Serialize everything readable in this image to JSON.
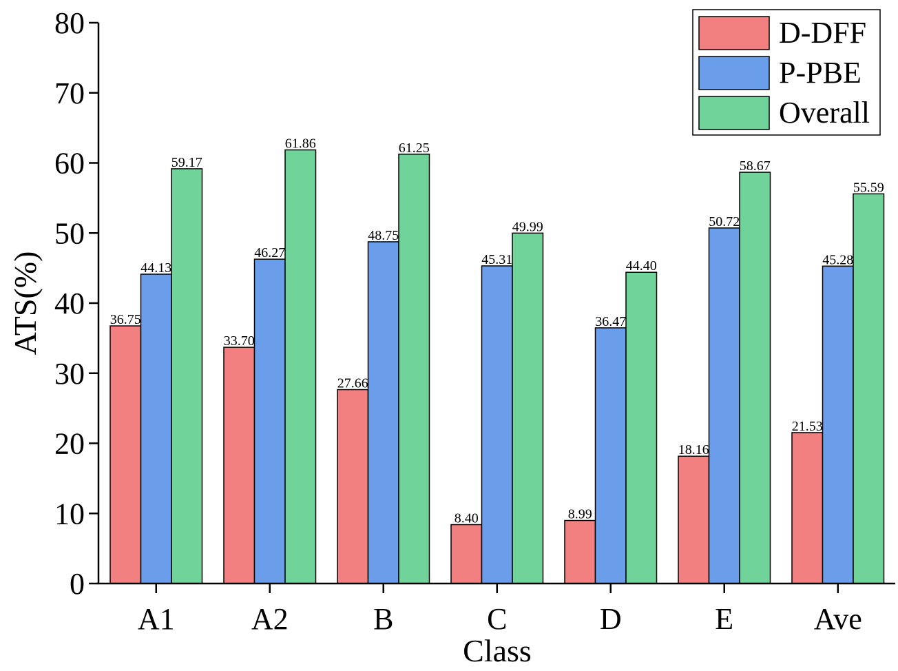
{
  "chart_data": {
    "type": "bar",
    "xlabel": "Class",
    "ylabel": "ATS(%)",
    "ylim": [
      0,
      80
    ],
    "yticks": [
      0,
      10,
      20,
      30,
      40,
      50,
      60,
      70,
      80
    ],
    "categories": [
      "A1",
      "A2",
      "B",
      "C",
      "D",
      "E",
      "Ave"
    ],
    "series": [
      {
        "name": "D-DFF",
        "color": "#f28080",
        "values": [
          36.75,
          33.7,
          27.66,
          8.4,
          8.99,
          18.16,
          21.53
        ],
        "labels": [
          "36.75",
          "33.70",
          "27.66",
          "8.40",
          "8.99",
          "18.16",
          "21.53"
        ]
      },
      {
        "name": "P-PBE",
        "color": "#6a9eea",
        "values": [
          44.13,
          46.27,
          48.75,
          45.31,
          36.47,
          50.72,
          45.28
        ],
        "labels": [
          "44.13",
          "46.27",
          "48.75",
          "45.31",
          "36.47",
          "50.72",
          "45.28"
        ]
      },
      {
        "name": "Overall",
        "color": "#6fd39a",
        "values": [
          59.17,
          61.86,
          61.25,
          49.99,
          44.4,
          58.67,
          55.59
        ],
        "labels": [
          "59.17",
          "61.86",
          "61.25",
          "49.99",
          "44.40",
          "58.67",
          "55.59"
        ]
      }
    ],
    "legend_position": "top-right",
    "grid": false
  }
}
